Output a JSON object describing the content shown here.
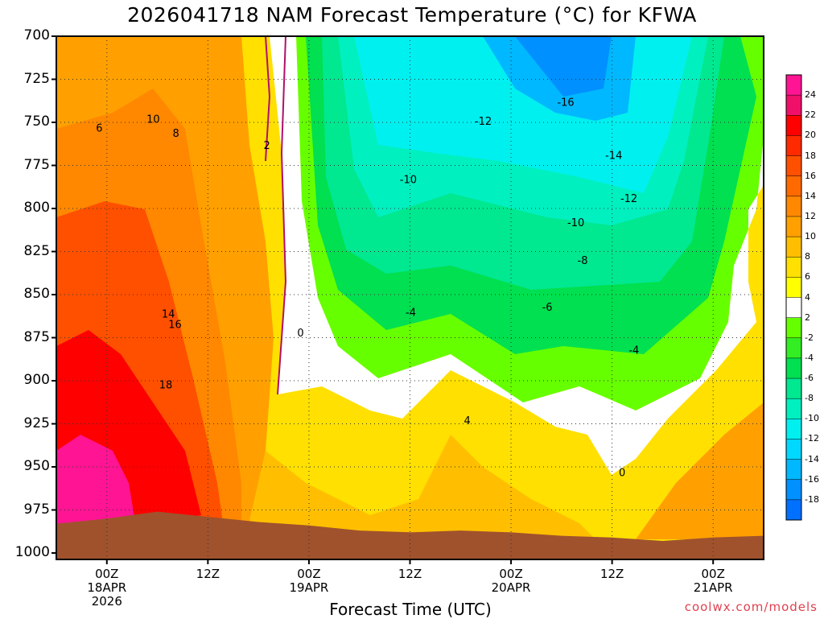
{
  "title": "2026041718 NAM Forecast Temperature (°C) for KFWA",
  "credit": "coolwx.com/models",
  "chart_data": {
    "type": "heatmap",
    "title": "2026041718 NAM Forecast Temperature (°C) for KFWA",
    "xlabel": "Forecast Time (UTC)",
    "ylabel": "",
    "y_ticks": [
      700,
      725,
      750,
      775,
      800,
      825,
      850,
      875,
      900,
      925,
      950,
      975,
      1000
    ],
    "ylim": [
      1000,
      700
    ],
    "x_ticks": [
      {
        "hour": 6,
        "label": "00Z",
        "sub1": "18APR",
        "sub2": "2026"
      },
      {
        "hour": 18,
        "label": "12Z",
        "sub1": "",
        "sub2": ""
      },
      {
        "hour": 30,
        "label": "00Z",
        "sub1": "19APR",
        "sub2": ""
      },
      {
        "hour": 42,
        "label": "12Z",
        "sub1": "",
        "sub2": ""
      },
      {
        "hour": 54,
        "label": "00Z",
        "sub1": "20APR",
        "sub2": ""
      },
      {
        "hour": 66,
        "label": "12Z",
        "sub1": "",
        "sub2": ""
      },
      {
        "hour": 78,
        "label": "00Z",
        "sub1": "21APR",
        "sub2": ""
      }
    ],
    "xlim_hours": [
      0,
      84
    ],
    "colorbar_labels": [
      24,
      22,
      20,
      18,
      16,
      14,
      12,
      10,
      8,
      6,
      4,
      2,
      -2,
      -4,
      -6,
      -8,
      -10,
      -12,
      -14,
      -16,
      -18
    ],
    "colorbar_colors": [
      "#ff1493",
      "#f0106a",
      "#ff0000",
      "#ff2a00",
      "#ff5000",
      "#ff6a00",
      "#ff8800",
      "#ffa000",
      "#ffbf00",
      "#ffe000",
      "#ffff00",
      "#ffffff",
      "#66ff00",
      "#33ee22",
      "#00e050",
      "#00e890",
      "#00f0c0",
      "#00f0f0",
      "#00d8ff",
      "#00b8ff",
      "#0090ff",
      "#0070ff"
    ],
    "contour_labels": [
      {
        "text": "6",
        "hour": 5.1,
        "p": 753
      },
      {
        "text": "10",
        "hour": 11.5,
        "p": 748
      },
      {
        "text": "8",
        "hour": 14.2,
        "p": 756
      },
      {
        "text": "2",
        "hour": 25.0,
        "p": 763
      },
      {
        "text": "14",
        "hour": 13.3,
        "p": 861
      },
      {
        "text": "16",
        "hour": 14.1,
        "p": 867
      },
      {
        "text": "18",
        "hour": 13.0,
        "p": 902
      },
      {
        "text": "0",
        "hour": 29.0,
        "p": 872
      },
      {
        "text": "-12",
        "hour": 50.7,
        "p": 749
      },
      {
        "text": "-16",
        "hour": 60.5,
        "p": 738
      },
      {
        "text": "-14",
        "hour": 66.2,
        "p": 769
      },
      {
        "text": "-10",
        "hour": 41.8,
        "p": 783
      },
      {
        "text": "-12",
        "hour": 68.0,
        "p": 794
      },
      {
        "text": "-10",
        "hour": 61.7,
        "p": 808
      },
      {
        "text": "-8",
        "hour": 62.5,
        "p": 830
      },
      {
        "text": "-6",
        "hour": 58.3,
        "p": 857
      },
      {
        "text": "-4",
        "hour": 42.1,
        "p": 860
      },
      {
        "text": "-4",
        "hour": 68.6,
        "p": 882
      },
      {
        "text": "4",
        "hour": 48.8,
        "p": 923
      },
      {
        "text": "0",
        "hour": 67.2,
        "p": 953
      }
    ],
    "ground_surface_p": [
      [
        0,
        983
      ],
      [
        6,
        980
      ],
      [
        12,
        976
      ],
      [
        18,
        979
      ],
      [
        24,
        982
      ],
      [
        30,
        984
      ],
      [
        36,
        987
      ],
      [
        42,
        988
      ],
      [
        48,
        987
      ],
      [
        54,
        988
      ],
      [
        60,
        990
      ],
      [
        66,
        991
      ],
      [
        72,
        993
      ],
      [
        78,
        991
      ],
      [
        84,
        990
      ]
    ]
  }
}
